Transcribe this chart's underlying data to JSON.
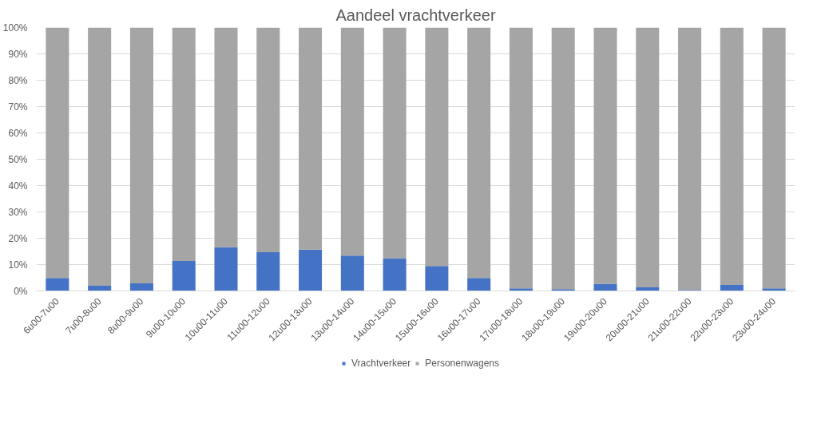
{
  "chart_data": {
    "type": "bar",
    "title": "Aandeel vrachtverkeer",
    "stacked": true,
    "categories": [
      "6u00-7u00",
      "7u00-8u00",
      "8u00-9u00",
      "9u00-10u00",
      "10u00-11u00",
      "11u00-12u00",
      "12u00-13u00",
      "13u00-14u00",
      "14u00-15u00",
      "15u00-16u00",
      "16u00-17u00",
      "17u00-18u00",
      "18u00-19u00",
      "19u00-20u00",
      "20u00-21u00",
      "21u00-22u00",
      "22u00-23u00",
      "23u00-24u00"
    ],
    "series": [
      {
        "name": "Vrachtverkeer",
        "color": "#4472c4",
        "values": [
          4.9,
          2.0,
          2.9,
          11.4,
          16.6,
          14.7,
          15.7,
          13.4,
          12.4,
          9.5,
          4.9,
          1.0,
          0.7,
          2.7,
          1.4,
          0.4,
          2.3,
          1.0
        ]
      },
      {
        "name": "Personenwagens",
        "color": "#a5a5a5",
        "values": [
          95.1,
          98.0,
          97.1,
          88.6,
          83.4,
          85.3,
          84.3,
          86.6,
          87.6,
          90.5,
          95.1,
          99.0,
          99.3,
          97.3,
          98.6,
          99.6,
          97.7,
          99.0
        ]
      }
    ],
    "ylim": [
      0,
      100
    ],
    "yticks": [
      {
        "value": 0,
        "label": "0%"
      },
      {
        "value": 10,
        "label": "10%"
      },
      {
        "value": 20,
        "label": "20%"
      },
      {
        "value": 30,
        "label": "30%"
      },
      {
        "value": 40,
        "label": "40%"
      },
      {
        "value": 50,
        "label": "50%"
      },
      {
        "value": 60,
        "label": "60%"
      },
      {
        "value": 70,
        "label": "70%"
      },
      {
        "value": 80,
        "label": "80%"
      },
      {
        "value": 90,
        "label": "90%"
      },
      {
        "value": 100,
        "label": "100%"
      }
    ],
    "grid": "y",
    "legend": "bottom"
  }
}
